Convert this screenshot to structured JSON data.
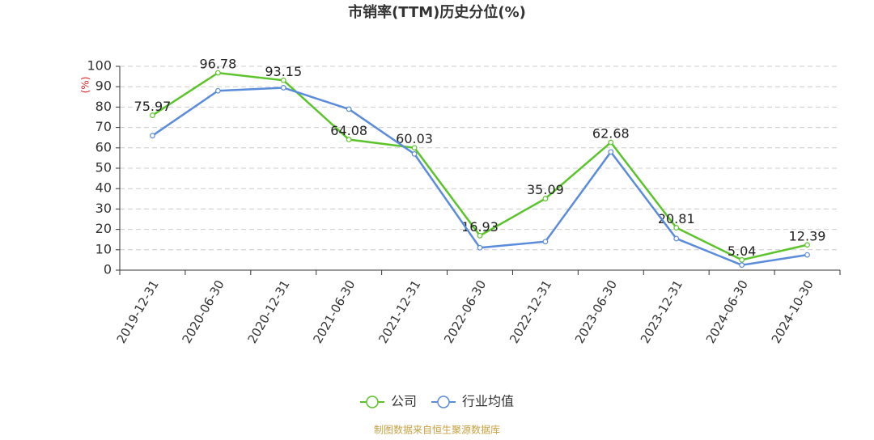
{
  "chart_data": {
    "type": "line",
    "title": "市销率(TTM)历史分位(%)",
    "y_label": "(%)",
    "categories": [
      "2019-12-31",
      "2020-06-30",
      "2020-12-31",
      "2021-06-30",
      "2021-12-31",
      "2022-06-30",
      "2022-12-31",
      "2023-06-30",
      "2023-12-31",
      "2024-06-30",
      "2024-10-30"
    ],
    "series": [
      {
        "name": "公司",
        "color": "#5cc42b",
        "values": [
          75.97,
          96.78,
          93.15,
          64.08,
          60.03,
          16.93,
          35.09,
          62.68,
          20.81,
          5.04,
          12.39
        ],
        "show_labels": true
      },
      {
        "name": "行业均值",
        "color": "#5b8bdb",
        "values": [
          66,
          88,
          89.5,
          79,
          57,
          11,
          14,
          58,
          15.5,
          2.5,
          7.5
        ],
        "show_labels": false
      }
    ],
    "ylim": [
      0,
      100
    ],
    "yticks": [
      0,
      10,
      20,
      30,
      40,
      50,
      60,
      70,
      80,
      90,
      100
    ],
    "grid": true,
    "source": "制图数据来自恒生聚源数据库"
  }
}
